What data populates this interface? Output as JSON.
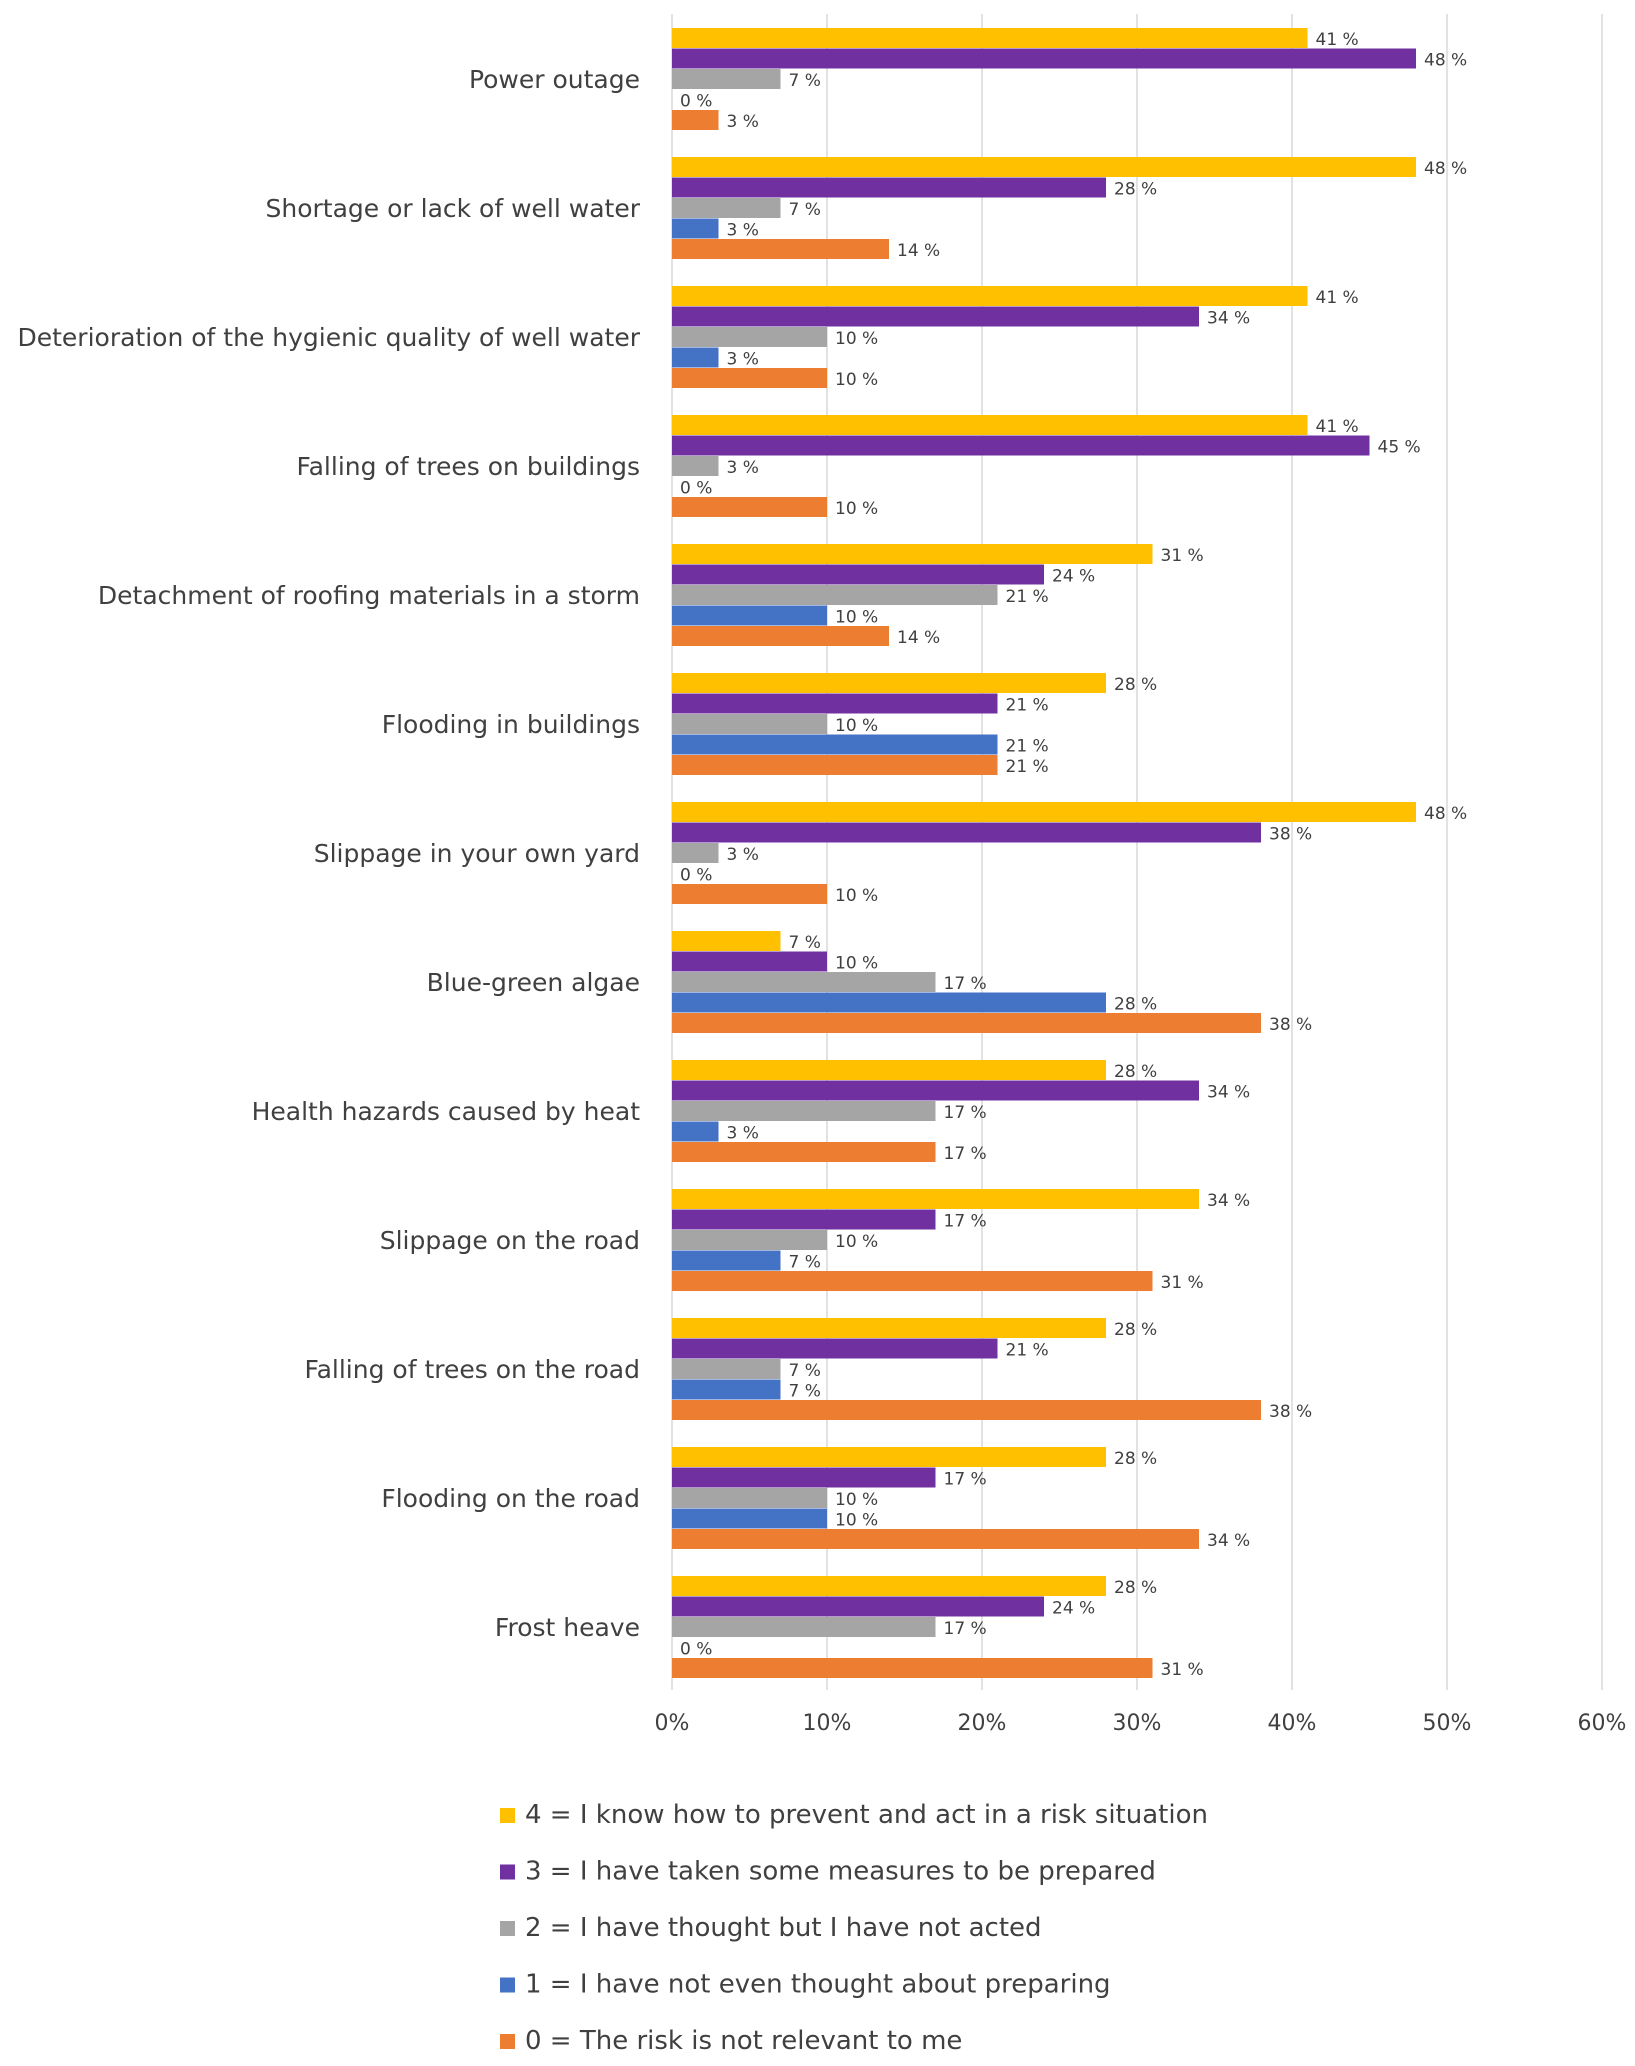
{
  "chart_data": {
    "type": "bar",
    "orientation": "horizontal",
    "title": "",
    "xlabel": "",
    "ylabel": "",
    "xlim": [
      0,
      60
    ],
    "x_ticks": [
      "0%",
      "10%",
      "20%",
      "30%",
      "40%",
      "50%",
      "60%"
    ],
    "grid": true,
    "legend_position": "bottom",
    "label_suffix": " %",
    "categories": [
      "Power outage",
      "Shortage or lack of well water",
      "Deterioration of the hygienic quality of well water",
      "Falling of trees on buildings",
      "Detachment of roofing materials in a storm",
      "Flooding in buildings",
      "Slippage in your own yard",
      "Blue-green algae",
      "Health hazards caused by heat",
      "Slippage on the road",
      "Falling of trees on the road",
      "Flooding on the road",
      "Frost heave"
    ],
    "series": [
      {
        "name": "4 = I know how to prevent and act in a risk situation",
        "color": "#FFC000",
        "values": [
          41,
          48,
          41,
          41,
          31,
          28,
          48,
          7,
          28,
          34,
          28,
          28,
          28
        ]
      },
      {
        "name": "3 = I have taken some measures to be prepared",
        "color": "#7030A0",
        "values": [
          48,
          28,
          34,
          45,
          24,
          21,
          38,
          10,
          34,
          17,
          21,
          17,
          24
        ]
      },
      {
        "name": "2 = I have thought but I have not acted",
        "color": "#A5A5A5",
        "values": [
          7,
          7,
          10,
          3,
          21,
          10,
          3,
          17,
          17,
          10,
          7,
          10,
          17
        ]
      },
      {
        "name": "1 = I have not even thought about preparing",
        "color": "#4472C4",
        "values": [
          0,
          3,
          3,
          0,
          10,
          21,
          0,
          28,
          3,
          7,
          7,
          10,
          0
        ]
      },
      {
        "name": "0 = The risk is not relevant to me",
        "color": "#ED7D31",
        "values": [
          3,
          14,
          10,
          10,
          14,
          21,
          10,
          38,
          17,
          31,
          38,
          34,
          31
        ]
      }
    ]
  }
}
